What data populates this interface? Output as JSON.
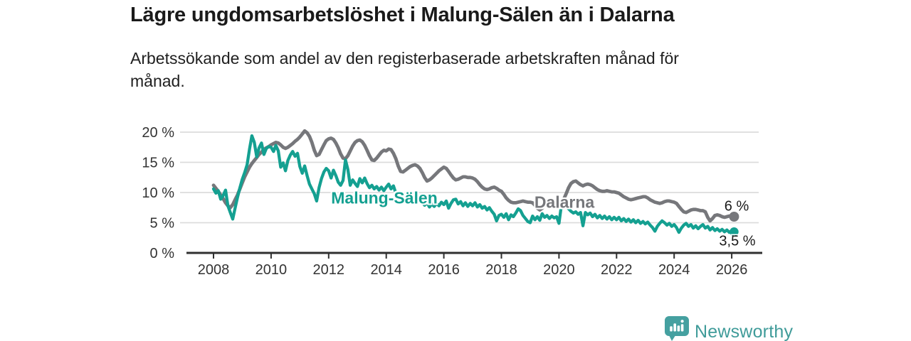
{
  "header": {
    "title": "Lägre ungdomsarbetslöshet i Malung-Sälen än i Dalarna",
    "subtitle": "Arbetssökande som andel av den registerbaserade arbetskraften månad för\nmånad."
  },
  "footer": {
    "brand": "Newsworthy",
    "logo_icon": "newsworthy-speech-bubble-bar-chart-icon"
  },
  "chart_data": {
    "type": "line",
    "title": "Lägre ungdomsarbetslöshet i Malung-Sälen än i Dalarna",
    "subtitle": "Arbetssökande som andel av den registerbaserade arbetskraften månad för månad.",
    "unit": "%",
    "x_start_year": 2008.0,
    "x_step_years": 0.08333,
    "xlim": [
      2007.4,
      2027.0
    ],
    "ylim": [
      0,
      21.5
    ],
    "grid": "horizontal",
    "legend_position": "inline-labels",
    "x_ticks": [
      "2008",
      "2010",
      "2012",
      "2014",
      "2016",
      "2018",
      "2020",
      "2022",
      "2024",
      "2026"
    ],
    "x_tick_years": [
      2008,
      2010,
      2012,
      2014,
      2016,
      2018,
      2020,
      2022,
      2024,
      2026
    ],
    "y_ticks": [
      {
        "value": 0,
        "label": "0 %"
      },
      {
        "value": 5,
        "label": "5 %"
      },
      {
        "value": 10,
        "label": "10 %"
      },
      {
        "value": 15,
        "label": "15 %"
      },
      {
        "value": 20,
        "label": "20 %"
      }
    ],
    "colors": {
      "grid": "#dcdcdc",
      "axis": "#2f2f2f",
      "tick_label": "#333333"
    },
    "series": [
      {
        "name": "Malung-Sälen",
        "color": "#14a091",
        "end_label": "3,5 %",
        "end_value": 3.5,
        "values": [
          10.6,
          9.9,
          10.3,
          8.9,
          9.5,
          10.4,
          7.8,
          6.7,
          5.6,
          7.4,
          9.2,
          10.8,
          12.2,
          13.3,
          14.6,
          17.2,
          19.4,
          18.3,
          15.9,
          17.4,
          18.2,
          16.3,
          17.3,
          17.6,
          17.5,
          16.8,
          17.8,
          16.9,
          14.2,
          14.9,
          13.6,
          15.3,
          16.2,
          16.8,
          16.0,
          16.5,
          14.3,
          13.2,
          14.4,
          12.8,
          11.4,
          10.6,
          9.8,
          8.6,
          10.8,
          12.3,
          13.4,
          14.0,
          13.6,
          12.4,
          13.7,
          12.8,
          11.7,
          11.2,
          12.0,
          15.4,
          13.8,
          11.2,
          12.1,
          11.5,
          11.0,
          12.3,
          11.6,
          12.4,
          11.5,
          10.8,
          11.2,
          10.6,
          11.0,
          10.4,
          10.9,
          10.3,
          10.9,
          11.4,
          10.6,
          11.1,
          9.9,
          9.2,
          8.6,
          9.3,
          8.8,
          9.4,
          9.0,
          9.6,
          9.2,
          8.7,
          9.1,
          8.4,
          7.9,
          8.3,
          7.6,
          8.1,
          7.7,
          8.2,
          7.8,
          8.4,
          8.0,
          8.6,
          7.4,
          8.2,
          8.8,
          8.9,
          8.1,
          8.5,
          7.8,
          8.3,
          7.7,
          8.2,
          7.8,
          8.3,
          7.6,
          8.0,
          7.4,
          7.7,
          7.1,
          7.5,
          6.9,
          6.4,
          5.3,
          6.2,
          6.4,
          5.9,
          6.5,
          5.5,
          6.3,
          6.0,
          6.6,
          7.3,
          7.0,
          6.2,
          5.7,
          5.2,
          5.0,
          6.1,
          5.5,
          6.0,
          5.4,
          6.5,
          5.9,
          6.2,
          5.7,
          6.1,
          5.8,
          6.0,
          4.9,
          7.9,
          7.5,
          7.7,
          7.3,
          6.9,
          6.6,
          6.8,
          6.4,
          6.7,
          4.5,
          6.7,
          6.3,
          6.6,
          6.0,
          6.4,
          5.8,
          6.2,
          5.7,
          6.1,
          5.6,
          6.0,
          5.5,
          5.9,
          5.5,
          5.9,
          5.3,
          5.7,
          5.2,
          5.6,
          5.1,
          5.5,
          5.0,
          5.4,
          4.9,
          5.2,
          4.8,
          5.1,
          4.6,
          4.2,
          3.6,
          4.4,
          4.9,
          5.3,
          5.0,
          4.6,
          4.9,
          4.4,
          4.7,
          4.2,
          3.4,
          4.1,
          4.6,
          4.9,
          4.4,
          4.7,
          4.1,
          4.5,
          4.0,
          4.4,
          4.7,
          4.1,
          4.4,
          3.8,
          4.2,
          3.7,
          4.0,
          3.6,
          3.9,
          3.5,
          3.8,
          3.4,
          3.7,
          3.5
        ]
      },
      {
        "name": "Dalarna",
        "color": "#76777b",
        "end_label": "6 %",
        "end_value": 6.0,
        "values": [
          11.2,
          10.7,
          10.2,
          9.6,
          9.0,
          8.3,
          7.8,
          7.5,
          8.0,
          8.8,
          9.6,
          10.6,
          11.6,
          12.6,
          13.4,
          14.2,
          14.8,
          15.3,
          15.8,
          16.3,
          16.7,
          17.1,
          17.4,
          17.6,
          17.9,
          18.1,
          18.3,
          18.2,
          17.9,
          17.5,
          17.3,
          17.5,
          17.8,
          18.1,
          18.5,
          18.8,
          19.2,
          19.7,
          20.2,
          19.9,
          19.3,
          18.3,
          17.0,
          16.1,
          16.3,
          17.1,
          17.9,
          18.6,
          18.9,
          19.0,
          18.8,
          18.2,
          17.4,
          16.4,
          15.7,
          15.6,
          16.1,
          16.9,
          17.7,
          18.3,
          18.6,
          18.7,
          18.4,
          17.8,
          17.0,
          16.1,
          15.4,
          15.3,
          15.7,
          16.2,
          16.7,
          17.0,
          16.9,
          17.2,
          17.1,
          16.5,
          15.6,
          14.4,
          13.5,
          13.4,
          13.7,
          14.0,
          14.3,
          14.5,
          14.6,
          14.4,
          14.0,
          13.3,
          12.5,
          11.9,
          12.1,
          12.4,
          12.8,
          13.2,
          13.6,
          13.9,
          14.2,
          14.0,
          13.5,
          12.9,
          12.4,
          12.1,
          12.2,
          12.4,
          12.6,
          12.6,
          12.5,
          12.5,
          12.4,
          12.2,
          11.8,
          11.3,
          10.9,
          10.6,
          10.5,
          10.6,
          10.8,
          10.9,
          10.7,
          10.4,
          10.2,
          9.7,
          9.1,
          8.7,
          8.4,
          8.3,
          8.3,
          8.4,
          8.5,
          8.6,
          8.5,
          8.4,
          8.4,
          8.3,
          7.9,
          7.4,
          7.1,
          7.4,
          7.8,
          8.1,
          8.3,
          8.4,
          8.4,
          8.4,
          8.4,
          8.5,
          8.9,
          9.8,
          10.8,
          11.5,
          11.8,
          11.9,
          11.6,
          11.3,
          11.1,
          11.3,
          11.4,
          11.3,
          11.1,
          10.8,
          10.5,
          10.3,
          10.2,
          10.2,
          10.3,
          10.2,
          10.1,
          10.1,
          10.0,
          9.9,
          9.6,
          9.3,
          9.1,
          8.9,
          8.8,
          8.9,
          9.0,
          9.1,
          9.2,
          9.3,
          9.3,
          9.1,
          8.8,
          8.6,
          8.4,
          8.3,
          8.2,
          8.3,
          8.5,
          8.6,
          8.6,
          8.5,
          8.4,
          8.2,
          7.7,
          7.2,
          6.8,
          6.7,
          6.9,
          7.1,
          7.2,
          7.2,
          7.1,
          7.0,
          7.0,
          6.8,
          5.9,
          5.3,
          5.7,
          6.2,
          6.3,
          6.2,
          6.0,
          5.9,
          6.0,
          6.1,
          6.1,
          6.0
        ]
      }
    ]
  }
}
